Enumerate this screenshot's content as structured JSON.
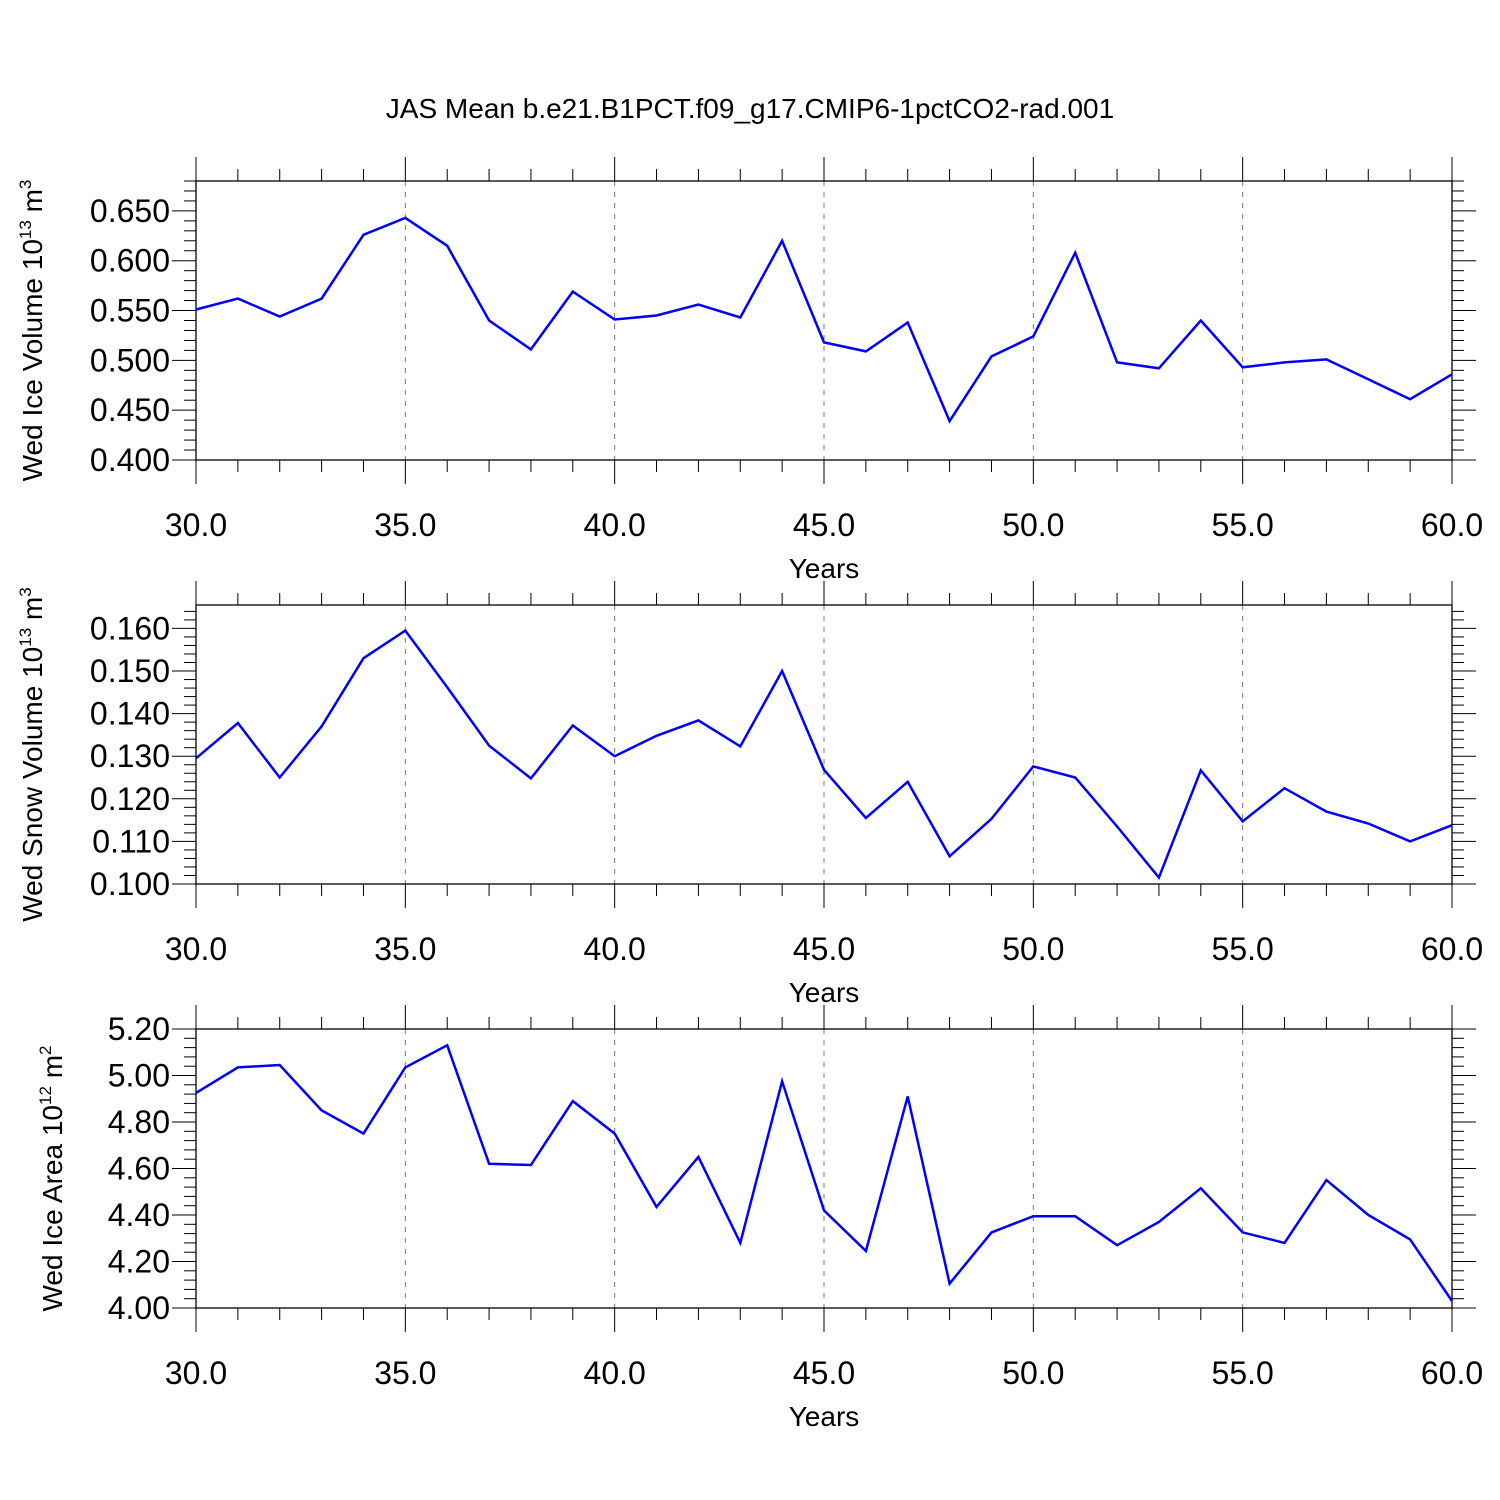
{
  "title": "JAS Mean b.e21.B1PCT.f09_g17.CMIP6-1pctCO2-rad.001",
  "colors": {
    "line": "#0000ff",
    "axis": "#000000",
    "grid": "#777777"
  },
  "chart_data": [
    {
      "type": "line",
      "xlabel": "Years",
      "ylabel": {
        "text": "Wed Ice Volume 10",
        "exp": "13",
        "unit": "m",
        "unit_exp": "3"
      },
      "xlim": [
        30,
        60
      ],
      "ylim": [
        0.4,
        0.68
      ],
      "yticks": [
        0.4,
        0.45,
        0.5,
        0.55,
        0.6,
        0.65
      ],
      "ytick_labels": [
        "0.400",
        "0.450",
        "0.500",
        "0.550",
        "0.600",
        "0.650"
      ],
      "xticks": [
        30,
        35,
        40,
        45,
        50,
        55,
        60
      ],
      "xtick_labels": [
        "30.0",
        "35.0",
        "40.0",
        "45.0",
        "50.0",
        "55.0",
        "60.0"
      ],
      "grid": "vertical dashed at major x ticks",
      "x": [
        30,
        31,
        32,
        33,
        34,
        35,
        36,
        37,
        38,
        39,
        40,
        41,
        42,
        43,
        44,
        45,
        46,
        47,
        48,
        49,
        50,
        51,
        52,
        53,
        54,
        55,
        56,
        57,
        58,
        59,
        60
      ],
      "series": [
        {
          "values": [
            0.551,
            0.562,
            0.544,
            0.562,
            0.626,
            0.643,
            0.615,
            0.54,
            0.511,
            0.569,
            0.541,
            0.545,
            0.556,
            0.543,
            0.62,
            0.518,
            0.509,
            0.538,
            0.439,
            0.504,
            0.524,
            0.608,
            0.498,
            0.492,
            0.54,
            0.493,
            0.498,
            0.501,
            0.481,
            0.461,
            0.486
          ]
        }
      ]
    },
    {
      "type": "line",
      "xlabel": "Years",
      "ylabel": {
        "text": "Wed Snow Volume 10",
        "exp": "13",
        "unit": "m",
        "unit_exp": "3"
      },
      "xlim": [
        30,
        60
      ],
      "ylim": [
        0.1,
        0.1655
      ],
      "yticks": [
        0.1,
        0.11,
        0.12,
        0.13,
        0.14,
        0.15,
        0.16
      ],
      "ytick_labels": [
        "0.100",
        "0.110",
        "0.120",
        "0.130",
        "0.140",
        "0.150",
        "0.160"
      ],
      "xticks": [
        30,
        35,
        40,
        45,
        50,
        55,
        60
      ],
      "xtick_labels": [
        "30.0",
        "35.0",
        "40.0",
        "45.0",
        "50.0",
        "55.0",
        "60.0"
      ],
      "grid": "vertical dashed at major x ticks",
      "x": [
        30,
        31,
        32,
        33,
        34,
        35,
        36,
        37,
        38,
        39,
        40,
        41,
        42,
        43,
        44,
        45,
        46,
        47,
        48,
        49,
        50,
        51,
        52,
        53,
        54,
        55,
        56,
        57,
        58,
        59,
        60
      ],
      "series": [
        {
          "values": [
            0.1295,
            0.1378,
            0.125,
            0.137,
            0.153,
            0.1595,
            0.1462,
            0.1325,
            0.1248,
            0.1372,
            0.13,
            0.1348,
            0.1384,
            0.1323,
            0.15,
            0.1268,
            0.1155,
            0.124,
            0.1065,
            0.1153,
            0.1276,
            0.125,
            0.1135,
            0.1015,
            0.1267,
            0.1147,
            0.1225,
            0.117,
            0.1142,
            0.11,
            0.1138
          ]
        }
      ]
    },
    {
      "type": "line",
      "xlabel": "Years",
      "ylabel": {
        "text": "Wed Ice Area 10",
        "exp": "12",
        "unit": "m",
        "unit_exp": "2"
      },
      "xlim": [
        30,
        60
      ],
      "ylim": [
        4.0,
        5.2
      ],
      "yticks": [
        4.0,
        4.2,
        4.4,
        4.6,
        4.8,
        5.0,
        5.2
      ],
      "ytick_labels": [
        "4.00",
        "4.20",
        "4.40",
        "4.60",
        "4.80",
        "5.00",
        "5.20"
      ],
      "xticks": [
        30,
        35,
        40,
        45,
        50,
        55,
        60
      ],
      "xtick_labels": [
        "30.0",
        "35.0",
        "40.0",
        "45.0",
        "50.0",
        "55.0",
        "60.0"
      ],
      "grid": "vertical dashed at major x ticks",
      "x": [
        30,
        31,
        32,
        33,
        34,
        35,
        36,
        37,
        38,
        39,
        40,
        41,
        42,
        43,
        44,
        45,
        46,
        47,
        48,
        49,
        50,
        51,
        52,
        53,
        54,
        55,
        56,
        57,
        58,
        59,
        60
      ],
      "series": [
        {
          "values": [
            4.925,
            5.035,
            5.045,
            4.85,
            4.75,
            5.035,
            5.13,
            4.62,
            4.615,
            4.89,
            4.75,
            4.435,
            4.65,
            4.28,
            4.975,
            4.42,
            4.245,
            4.91,
            4.105,
            4.325,
            4.395,
            4.395,
            4.27,
            4.37,
            4.515,
            4.325,
            4.28,
            4.55,
            4.4,
            4.295,
            4.03
          ]
        }
      ]
    }
  ]
}
